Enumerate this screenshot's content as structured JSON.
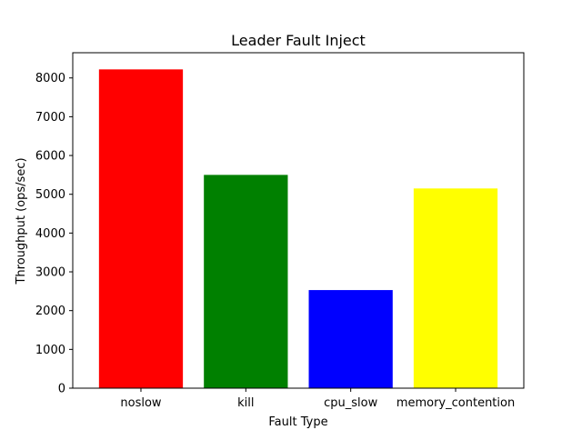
{
  "chart_data": {
    "type": "bar",
    "title": "Leader Fault Inject",
    "xlabel": "Fault Type",
    "ylabel": "Throughput (ops/sec)",
    "categories": [
      "noslow",
      "kill",
      "cpu_slow",
      "memory_contention"
    ],
    "values": [
      8220,
      5500,
      2530,
      5150
    ],
    "colors": [
      "#ff0000",
      "#008000",
      "#0000ff",
      "#ffff00"
    ],
    "ylim": [
      0,
      8650
    ],
    "yticks": [
      0,
      1000,
      2000,
      3000,
      4000,
      5000,
      6000,
      7000,
      8000
    ],
    "ytick_labels": [
      "0",
      "1000",
      "2000",
      "3000",
      "4000",
      "5000",
      "6000",
      "7000",
      "8000"
    ],
    "grid": false,
    "legend": "none"
  }
}
